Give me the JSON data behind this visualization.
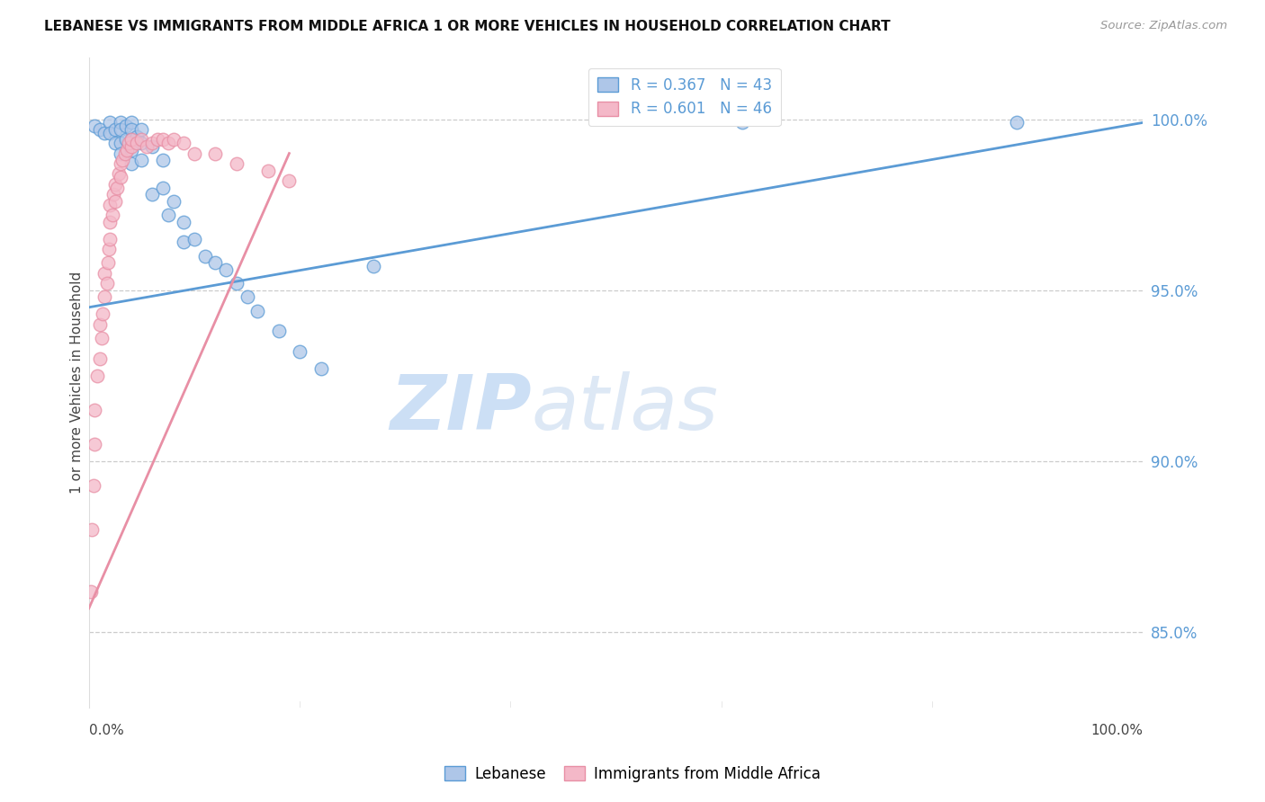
{
  "title": "LEBANESE VS IMMIGRANTS FROM MIDDLE AFRICA 1 OR MORE VEHICLES IN HOUSEHOLD CORRELATION CHART",
  "source": "Source: ZipAtlas.com",
  "ylabel": "1 or more Vehicles in Household",
  "ytick_labels": [
    "85.0%",
    "90.0%",
    "95.0%",
    "100.0%"
  ],
  "ytick_values": [
    0.85,
    0.9,
    0.95,
    1.0
  ],
  "xlim": [
    0.0,
    1.0
  ],
  "ylim": [
    0.828,
    1.018
  ],
  "legend_r_blue": "R = 0.367",
  "legend_n_blue": "N = 43",
  "legend_r_pink": "R = 0.601",
  "legend_n_pink": "N = 46",
  "blue_scatter_x": [
    0.005,
    0.01,
    0.015,
    0.02,
    0.02,
    0.025,
    0.025,
    0.03,
    0.03,
    0.03,
    0.03,
    0.035,
    0.035,
    0.04,
    0.04,
    0.04,
    0.04,
    0.04,
    0.045,
    0.05,
    0.05,
    0.05,
    0.06,
    0.06,
    0.07,
    0.07,
    0.075,
    0.08,
    0.09,
    0.09,
    0.1,
    0.11,
    0.12,
    0.13,
    0.14,
    0.15,
    0.16,
    0.18,
    0.2,
    0.22,
    0.27,
    0.62,
    0.88
  ],
  "blue_scatter_y": [
    0.998,
    0.997,
    0.996,
    0.999,
    0.996,
    0.997,
    0.993,
    0.999,
    0.997,
    0.993,
    0.99,
    0.998,
    0.994,
    0.999,
    0.997,
    0.994,
    0.991,
    0.987,
    0.995,
    0.997,
    0.993,
    0.988,
    0.992,
    0.978,
    0.988,
    0.98,
    0.972,
    0.976,
    0.97,
    0.964,
    0.965,
    0.96,
    0.958,
    0.956,
    0.952,
    0.948,
    0.944,
    0.938,
    0.932,
    0.927,
    0.957,
    0.999,
    0.999
  ],
  "pink_scatter_x": [
    0.002,
    0.003,
    0.004,
    0.005,
    0.005,
    0.008,
    0.01,
    0.01,
    0.012,
    0.013,
    0.015,
    0.015,
    0.017,
    0.018,
    0.019,
    0.02,
    0.02,
    0.02,
    0.022,
    0.023,
    0.025,
    0.025,
    0.027,
    0.028,
    0.03,
    0.03,
    0.032,
    0.034,
    0.036,
    0.038,
    0.04,
    0.04,
    0.045,
    0.05,
    0.055,
    0.06,
    0.065,
    0.07,
    0.075,
    0.08,
    0.09,
    0.1,
    0.12,
    0.14,
    0.17,
    0.19
  ],
  "pink_scatter_y": [
    0.862,
    0.88,
    0.893,
    0.905,
    0.915,
    0.925,
    0.93,
    0.94,
    0.936,
    0.943,
    0.948,
    0.955,
    0.952,
    0.958,
    0.962,
    0.965,
    0.97,
    0.975,
    0.972,
    0.978,
    0.976,
    0.981,
    0.98,
    0.984,
    0.983,
    0.987,
    0.988,
    0.99,
    0.991,
    0.993,
    0.992,
    0.994,
    0.993,
    0.994,
    0.992,
    0.993,
    0.994,
    0.994,
    0.993,
    0.994,
    0.993,
    0.99,
    0.99,
    0.987,
    0.985,
    0.982
  ],
  "blue_line_x0": 0.0,
  "blue_line_y0": 0.945,
  "blue_line_x1": 1.0,
  "blue_line_y1": 0.999,
  "pink_line_x0": 0.0,
  "pink_line_y0": 0.857,
  "pink_line_x1": 0.19,
  "pink_line_y1": 0.99,
  "blue_color": "#5b9bd5",
  "pink_color": "#e88fa5",
  "blue_fill": "#aec6e8",
  "pink_fill": "#f4b8c8",
  "grid_color": "#cccccc",
  "watermark_zip": "ZIP",
  "watermark_atlas": "atlas",
  "watermark_color": "#ccdff5",
  "label_Lebanese": "Lebanese",
  "label_Africa": "Immigrants from Middle Africa"
}
